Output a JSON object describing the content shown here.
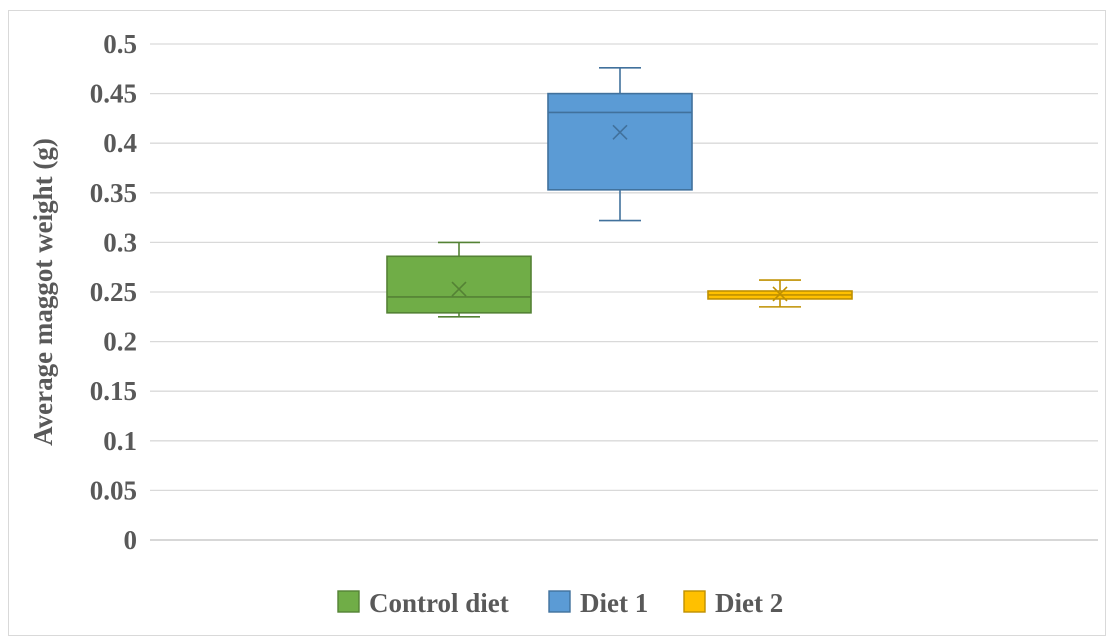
{
  "chart_data": {
    "type": "boxplot",
    "title": "",
    "xlabel": "",
    "ylabel": "Average maggot weight (g)",
    "ylim": [
      0,
      0.5
    ],
    "yticks": [
      "0",
      "0.05",
      "0.1",
      "0.15",
      "0.2",
      "0.25",
      "0.3",
      "0.35",
      "0.4",
      "0.45",
      "0.5"
    ],
    "grid": true,
    "legend_position": "bottom",
    "series": [
      {
        "name": "Control diet",
        "color": "#70ad47",
        "stroke": "#548235",
        "min": 0.225,
        "q1": 0.229,
        "median": 0.245,
        "q3": 0.286,
        "max": 0.3,
        "mean": 0.253
      },
      {
        "name": "Diet 1",
        "color": "#5b9bd5",
        "stroke": "#41719c",
        "min": 0.322,
        "q1": 0.353,
        "median": 0.431,
        "q3": 0.45,
        "max": 0.476,
        "mean": 0.411
      },
      {
        "name": "Diet 2",
        "color": "#ffc000",
        "stroke": "#bf9000",
        "min": 0.235,
        "q1": 0.243,
        "median": 0.247,
        "q3": 0.251,
        "max": 0.262,
        "mean": 0.248
      }
    ]
  }
}
